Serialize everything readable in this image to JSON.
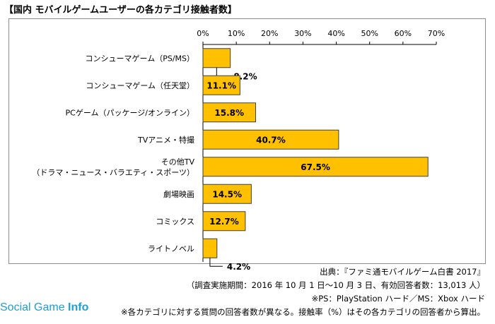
{
  "title": "【国内 モバイルゲームユーザーの各カテゴリ接触者数】",
  "chart_data": {
    "type": "bar",
    "orientation": "horizontal",
    "categories": [
      [
        "コンシューマゲーム（PS/MS）"
      ],
      [
        "コンシューマゲーム（任天堂）"
      ],
      [
        "PCゲーム（パッケージ/オンライン）"
      ],
      [
        "TVアニメ・特撮"
      ],
      [
        "その他TV",
        "（ドラマ・ニュース・バラエティ・スポーツ）"
      ],
      [
        "劇場映画"
      ],
      [
        "コミックス"
      ],
      [
        "ライトノベル"
      ]
    ],
    "values": [
      8.2,
      11.1,
      15.8,
      40.7,
      67.5,
      14.5,
      12.7,
      4.2
    ],
    "value_labels": [
      "8.2%",
      "11.1%",
      "15.8%",
      "40.7%",
      "67.5%",
      "14.5%",
      "12.7%",
      "4.2%"
    ],
    "xlim": [
      0,
      70
    ],
    "x_ticks": [
      "0%",
      "10%",
      "20%",
      "30%",
      "40%",
      "50%",
      "60%",
      "70%"
    ],
    "axis_position": "top",
    "grid": false,
    "bar_color": "#ffc000",
    "bar_edge_color": "#404040"
  },
  "notes": {
    "source": "出典：『ファミ通モバイルゲーム白書 2017』",
    "period": "（調査実施期間：2016 年 10 月 1 日〜10 月 3 日、有効回答者数：13,013 人）",
    "hardware": "※PS：PlayStation ハード／MS：Xbox ハード",
    "caveat": "※各カテゴリに対する質問の回答者数が異なる。接触率（%）はその各カテゴリの回答者から算出。"
  },
  "watermark": {
    "part1": "Social Game ",
    "part2": "Info"
  }
}
